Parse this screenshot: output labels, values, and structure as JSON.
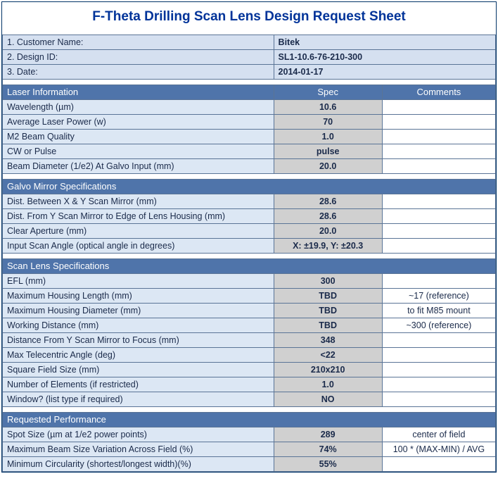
{
  "title": "F-Theta Drilling Scan Lens Design Request Sheet",
  "colors": {
    "frame_border": "#003366",
    "title_text": "#003399",
    "section_header_bg": "#4f74aa",
    "section_header_text": "#ffffff",
    "info_bg": "#d5e0f0",
    "label_bg": "#dce7f4",
    "spec_bg": "#d0d0d0",
    "cell_border": "#5a7496",
    "text_color": "#1a2a4a"
  },
  "info": {
    "rows": [
      {
        "label": "1. Customer Name:",
        "value": "Bitek"
      },
      {
        "label": "2. Design ID:",
        "value": "SL1-10.6-76-210-300"
      },
      {
        "label": "3. Date:",
        "value": "2014-01-17"
      }
    ]
  },
  "columns": {
    "spec": "Spec",
    "comments": "Comments"
  },
  "sections": [
    {
      "name": "Laser Information",
      "show_col_headers": true,
      "rows": [
        {
          "label": "Wavelength (µm)",
          "spec": "10.6",
          "comment": ""
        },
        {
          "label": "Average Laser Power (w)",
          "spec": "70",
          "comment": ""
        },
        {
          "label": "M2 Beam Quality",
          "spec": "1.0",
          "comment": ""
        },
        {
          "label": "CW or Pulse",
          "spec": "pulse",
          "comment": ""
        },
        {
          "label": "Beam Diameter (1/e2) At Galvo Input (mm)",
          "spec": "20.0",
          "comment": ""
        }
      ]
    },
    {
      "name": "Galvo Mirror Specifications",
      "show_col_headers": false,
      "rows": [
        {
          "label": "Dist. Between X & Y Scan Mirror (mm)",
          "spec": "28.6",
          "comment": ""
        },
        {
          "label": "Dist. From Y Scan Mirror to Edge of Lens Housing (mm)",
          "spec": "28.6",
          "comment": ""
        },
        {
          "label": "Clear Aperture (mm)",
          "spec": "20.0",
          "comment": ""
        },
        {
          "label": "Input Scan Angle (optical angle in degrees)",
          "spec": "X: ±19.9, Y: ±20.3",
          "comment": ""
        }
      ]
    },
    {
      "name": "Scan Lens Specifications",
      "show_col_headers": false,
      "rows": [
        {
          "label": "EFL (mm)",
          "spec": "300",
          "comment": ""
        },
        {
          "label": "Maximum Housing Length (mm)",
          "spec": "TBD",
          "comment": "~17 (reference)"
        },
        {
          "label": "Maximum Housing Diameter (mm)",
          "spec": "TBD",
          "comment": "to fit M85 mount"
        },
        {
          "label": "Working Distance (mm)",
          "spec": "TBD",
          "comment": "~300 (reference)"
        },
        {
          "label": "Distance From Y Scan Mirror to Focus (mm)",
          "spec": "348",
          "comment": ""
        },
        {
          "label": "Max Telecentric Angle (deg)",
          "spec": "<22",
          "comment": ""
        },
        {
          "label": "Square Field Size (mm)",
          "spec": "210x210",
          "comment": ""
        },
        {
          "label": "Number of Elements (if restricted)",
          "spec": "1.0",
          "comment": ""
        },
        {
          "label": "Window? (list type if required)",
          "spec": "NO",
          "comment": ""
        }
      ]
    },
    {
      "name": "Requested Performance",
      "show_col_headers": false,
      "rows": [
        {
          "label": "Spot Size (µm at 1/e2 power points)",
          "spec": "289",
          "comment": "center of field"
        },
        {
          "label": "Maximum Beam Size Variation Across Field (%)",
          "spec": "74%",
          "comment": "100 * (MAX-MIN) / AVG"
        },
        {
          "label": "Minimum Circularity (shortest/longest width)(%)",
          "spec": "55%",
          "comment": ""
        }
      ]
    }
  ]
}
